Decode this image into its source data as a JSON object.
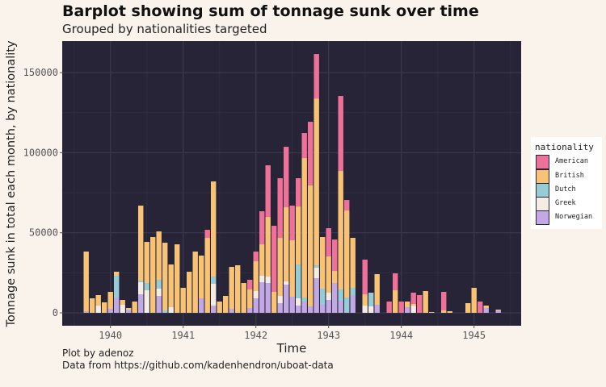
{
  "chart_data": {
    "type": "bar",
    "stacked": true,
    "title": "Barplot showing sum of tonnage sunk over time",
    "subtitle": "Grouped by nationalities targeted",
    "xlabel": "Time",
    "ylabel": "Tonnage sunk in total each month, by nationality",
    "caption": [
      "Plot by adenoz",
      "Data from https://github.com/kadenhendron/uboat-data"
    ],
    "ylim": [
      0,
      170000
    ],
    "yticks": [
      0,
      50000,
      100000,
      150000
    ],
    "ytick_labels": [
      "0",
      "50000",
      "100000",
      "150000"
    ],
    "xlim": [
      "1939-06",
      "1945-07"
    ],
    "xticks": [
      "1940",
      "1941",
      "1942",
      "1943",
      "1944",
      "1945"
    ],
    "grid": true,
    "legend": {
      "title": "nationality",
      "position": "right"
    },
    "panel_background": "#272438",
    "series": [
      {
        "name": "American",
        "color": "#ef7099"
      },
      {
        "name": "British",
        "color": "#f8c374"
      },
      {
        "name": "Dutch",
        "color": "#96ccd6"
      },
      {
        "name": "Greek",
        "color": "#f5ede4"
      },
      {
        "name": "Norwegian",
        "color": "#c3a8e6"
      }
    ],
    "bars": [
      {
        "month": "1939-09",
        "values": [
          0,
          37600,
          0,
          0,
          670
        ]
      },
      {
        "month": "1939-10",
        "values": [
          0,
          9060,
          0,
          0,
          0
        ]
      },
      {
        "month": "1939-11",
        "values": [
          0,
          6540,
          0,
          4530,
          0
        ]
      },
      {
        "month": "1939-12",
        "values": [
          0,
          6540,
          0,
          0,
          0
        ]
      },
      {
        "month": "1940-01",
        "values": [
          0,
          10570,
          0,
          0,
          2520
        ]
      },
      {
        "month": "1940-02",
        "values": [
          0,
          2520,
          13590,
          0,
          9560
        ]
      },
      {
        "month": "1940-03",
        "values": [
          0,
          3020,
          0,
          5030,
          0
        ]
      },
      {
        "month": "1940-04",
        "values": [
          0,
          1010,
          0,
          0,
          2010
        ]
      },
      {
        "month": "1940-05",
        "values": [
          0,
          7050,
          0,
          0,
          0
        ]
      },
      {
        "month": "1940-06",
        "values": [
          0,
          46810,
          1010,
          7550,
          11580
        ]
      },
      {
        "month": "1940-07",
        "values": [
          0,
          25670,
          4530,
          14090,
          0
        ]
      },
      {
        "month": "1940-08",
        "values": [
          0,
          47310,
          0,
          0,
          0
        ]
      },
      {
        "month": "1940-09",
        "values": [
          0,
          30200,
          5540,
          4530,
          10570
        ]
      },
      {
        "month": "1940-10",
        "values": [
          0,
          42280,
          1510,
          0,
          0
        ]
      },
      {
        "month": "1940-11",
        "values": [
          0,
          26680,
          0,
          3520,
          0
        ]
      },
      {
        "month": "1940-12",
        "values": [
          0,
          42780,
          0,
          0,
          0
        ]
      },
      {
        "month": "1941-01",
        "values": [
          0,
          15600,
          0,
          0,
          0
        ]
      },
      {
        "month": "1941-02",
        "values": [
          0,
          25670,
          0,
          0,
          0
        ]
      },
      {
        "month": "1941-03",
        "values": [
          0,
          38250,
          0,
          0,
          0
        ]
      },
      {
        "month": "1941-04",
        "values": [
          0,
          26680,
          0,
          0,
          9060
        ]
      },
      {
        "month": "1941-05",
        "values": [
          5030,
          46810,
          0,
          0,
          0
        ]
      },
      {
        "month": "1941-06",
        "values": [
          0,
          59400,
          4530,
          13590,
          4530
        ]
      },
      {
        "month": "1941-07",
        "values": [
          0,
          7050,
          0,
          0,
          0
        ]
      },
      {
        "month": "1941-08",
        "values": [
          0,
          10570,
          0,
          0,
          0
        ]
      },
      {
        "month": "1941-09",
        "values": [
          0,
          26170,
          0,
          0,
          2520
        ]
      },
      {
        "month": "1941-10",
        "values": [
          0,
          29700,
          0,
          0,
          0
        ]
      },
      {
        "month": "1941-11",
        "values": [
          0,
          18620,
          0,
          0,
          0
        ]
      },
      {
        "month": "1941-12",
        "values": [
          6040,
          11580,
          0,
          0,
          3020
        ]
      },
      {
        "month": "1942-01",
        "values": [
          6040,
          18620,
          0,
          4530,
          9060
        ]
      },
      {
        "month": "1942-02",
        "values": [
          20640,
          19630,
          0,
          4030,
          19130
        ]
      },
      {
        "month": "1942-03",
        "values": [
          32220,
          37250,
          0,
          4030,
          18620
        ]
      },
      {
        "month": "1942-04",
        "values": [
          41280,
          13090,
          0,
          0,
          0
        ]
      },
      {
        "month": "1942-05",
        "values": [
          37250,
          36240,
          0,
          4530,
          6040
        ]
      },
      {
        "month": "1942-06",
        "values": [
          37750,
          46310,
          0,
          2010,
          17620
        ]
      },
      {
        "month": "1942-07",
        "values": [
          21650,
          35240,
          0,
          0,
          10070
        ]
      },
      {
        "month": "1942-08",
        "values": [
          17620,
          36240,
          21140,
          4530,
          4530
        ]
      },
      {
        "month": "1942-09",
        "values": [
          15600,
          87090,
          2520,
          0,
          7050
        ]
      },
      {
        "month": "1942-10",
        "values": [
          39770,
          75510,
          0,
          0,
          4030
        ]
      },
      {
        "month": "1942-11",
        "values": [
          27690,
          104200,
          1510,
          6540,
          21650
        ]
      },
      {
        "month": "1942-12",
        "values": [
          0,
          32220,
          10070,
          0,
          5030
        ]
      },
      {
        "month": "1943-01",
        "values": [
          17620,
          22650,
          0,
          4530,
          8050
        ]
      },
      {
        "month": "1943-02",
        "values": [
          19630,
          7550,
          0,
          0,
          18620
        ]
      },
      {
        "month": "1943-03",
        "values": [
          46810,
          74000,
          7050,
          0,
          7550
        ]
      },
      {
        "month": "1943-04",
        "values": [
          6540,
          54370,
          9560,
          0,
          0
        ]
      },
      {
        "month": "1943-05",
        "values": [
          0,
          31210,
          4530,
          0,
          11080
        ]
      },
      {
        "month": "1943-07",
        "values": [
          21650,
          7050,
          0,
          4530,
          0
        ]
      },
      {
        "month": "1943-08",
        "values": [
          0,
          0,
          8560,
          4030,
          0
        ]
      },
      {
        "month": "1943-09",
        "values": [
          0,
          19130,
          0,
          0,
          5030
        ]
      },
      {
        "month": "1943-11",
        "values": [
          7050,
          0,
          0,
          0,
          0
        ]
      },
      {
        "month": "1943-12",
        "values": [
          10570,
          14090,
          0,
          0,
          0
        ]
      },
      {
        "month": "1944-01",
        "values": [
          7050,
          0,
          0,
          0,
          0
        ]
      },
      {
        "month": "1944-02",
        "values": [
          0,
          3520,
          0,
          0,
          3520
        ]
      },
      {
        "month": "1944-03",
        "values": [
          7050,
          1010,
          0,
          4530,
          0
        ]
      },
      {
        "month": "1944-04",
        "values": [
          11080,
          0,
          0,
          0,
          0
        ]
      },
      {
        "month": "1944-05",
        "values": [
          0,
          13590,
          0,
          0,
          0
        ]
      },
      {
        "month": "1944-06",
        "values": [
          0,
          500,
          0,
          0,
          0
        ]
      },
      {
        "month": "1944-08",
        "values": [
          11580,
          1510,
          0,
          0,
          0
        ]
      },
      {
        "month": "1944-09",
        "values": [
          0,
          1010,
          0,
          0,
          0
        ]
      },
      {
        "month": "1944-12",
        "values": [
          0,
          6040,
          0,
          0,
          0
        ]
      },
      {
        "month": "1945-01",
        "values": [
          0,
          15600,
          0,
          0,
          0
        ]
      },
      {
        "month": "1945-02",
        "values": [
          7050,
          0,
          0,
          0,
          0
        ]
      },
      {
        "month": "1945-03",
        "values": [
          0,
          1510,
          0,
          0,
          3020
        ]
      },
      {
        "month": "1945-05",
        "values": [
          0,
          500,
          0,
          0,
          1510
        ]
      }
    ]
  }
}
